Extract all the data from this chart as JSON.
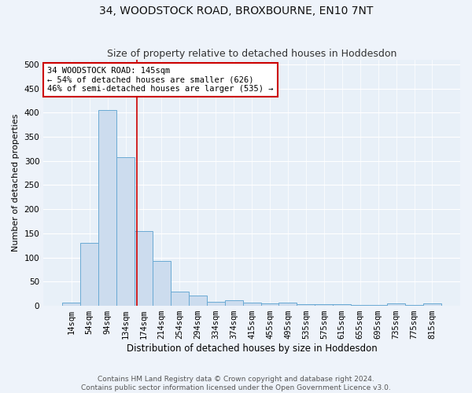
{
  "title": "34, WOODSTOCK ROAD, BROXBOURNE, EN10 7NT",
  "subtitle": "Size of property relative to detached houses in Hoddesdon",
  "xlabel": "Distribution of detached houses by size in Hoddesdon",
  "ylabel": "Number of detached properties",
  "footer_line1": "Contains HM Land Registry data © Crown copyright and database right 2024.",
  "footer_line2": "Contains public sector information licensed under the Open Government Licence v3.0.",
  "bar_labels": [
    "14sqm",
    "54sqm",
    "94sqm",
    "134sqm",
    "174sqm",
    "214sqm",
    "254sqm",
    "294sqm",
    "334sqm",
    "374sqm",
    "415sqm",
    "455sqm",
    "495sqm",
    "535sqm",
    "575sqm",
    "615sqm",
    "655sqm",
    "695sqm",
    "735sqm",
    "775sqm",
    "815sqm"
  ],
  "bar_values": [
    6,
    130,
    405,
    308,
    155,
    93,
    30,
    22,
    8,
    12,
    6,
    5,
    7,
    4,
    3,
    3,
    2,
    1,
    5,
    1,
    5
  ],
  "bar_color": "#ccdcee",
  "bar_edge_color": "#6aaad4",
  "fig_bg_color": "#eef3fa",
  "ax_bg_color": "#e8f0f8",
  "grid_color": "#ffffff",
  "annotation_text_line1": "34 WOODSTOCK ROAD: 145sqm",
  "annotation_text_line2": "← 54% of detached houses are smaller (626)",
  "annotation_text_line3": "46% of semi-detached houses are larger (535) →",
  "annotation_box_color": "#ffffff",
  "annotation_box_edge_color": "#cc0000",
  "red_line_x": 3.62,
  "ylim_max": 510,
  "yticks": [
    0,
    50,
    100,
    150,
    200,
    250,
    300,
    350,
    400,
    450,
    500
  ],
  "title_fontsize": 10,
  "subtitle_fontsize": 9,
  "ylabel_fontsize": 8,
  "xlabel_fontsize": 8.5,
  "tick_fontsize": 7.5,
  "annotation_fontsize": 7.5,
  "footer_fontsize": 6.5
}
